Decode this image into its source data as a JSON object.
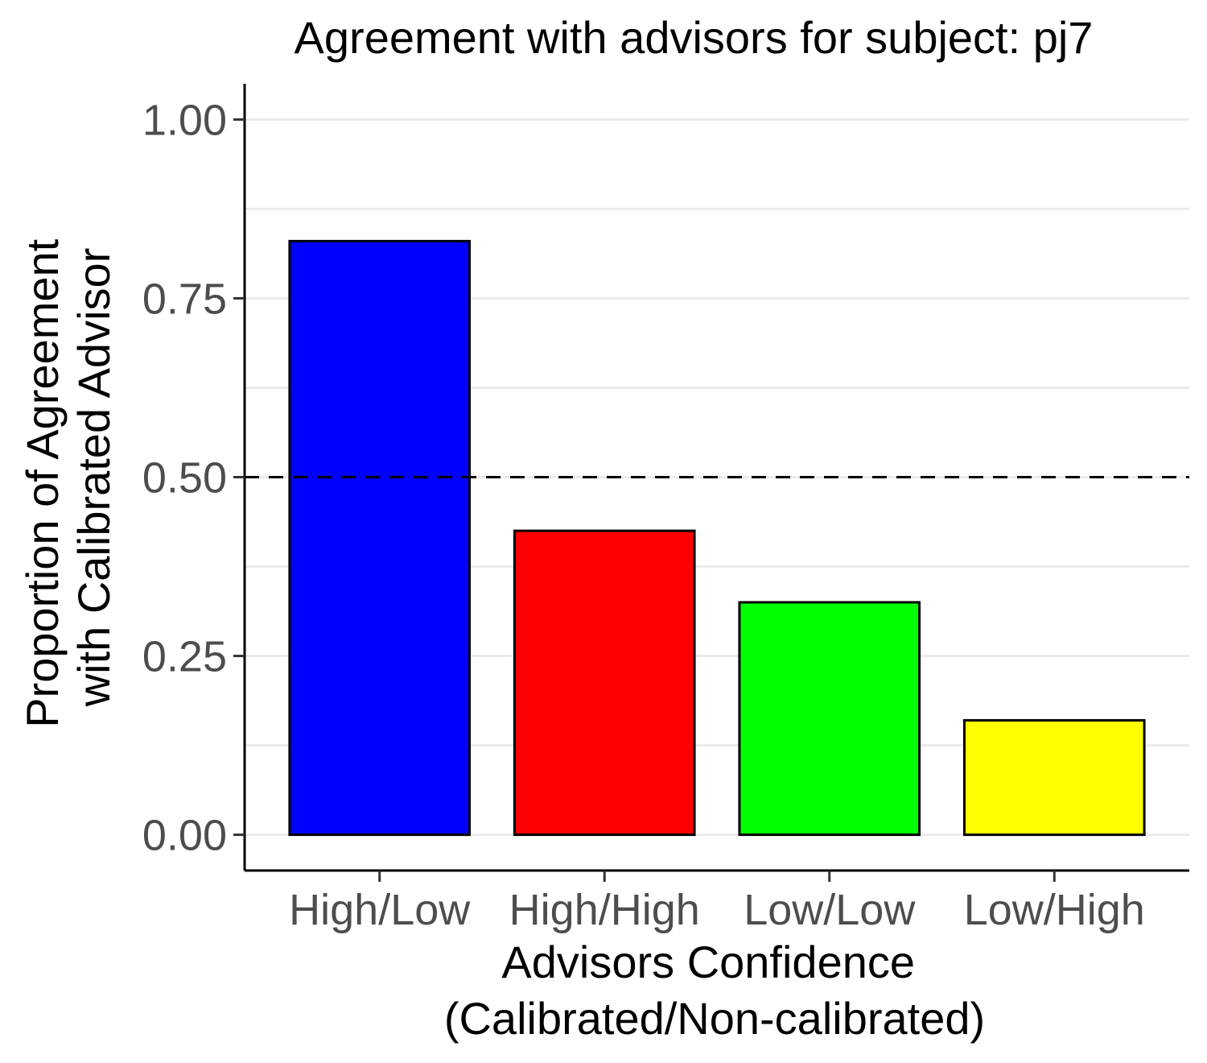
{
  "chart_data": {
    "type": "bar",
    "title": "Agreement with advisors for subject: pj7",
    "xlabel": [
      "Advisors Confidence",
      "(Calibrated/Non-calibrated)"
    ],
    "ylabel": [
      "Proportion of Agreement",
      "with Calibrated Advisor"
    ],
    "categories": [
      "High/Low",
      "High/High",
      "Low/Low",
      "Low/High"
    ],
    "values": [
      0.83,
      0.425,
      0.325,
      0.16
    ],
    "colors": [
      "#0000ff",
      "#ff0000",
      "#00ff00",
      "#ffff00"
    ],
    "ylim": [
      -0.05,
      1.05
    ],
    "yticks": [
      0.0,
      0.25,
      0.5,
      0.75,
      1.0
    ],
    "ytick_labels": [
      "0.00",
      "0.25",
      "0.50",
      "0.75",
      "1.00"
    ],
    "reference_line": {
      "y": 0.5,
      "style": "dashed",
      "color": "#000000"
    },
    "grid": "horizontal",
    "legend": "none"
  }
}
